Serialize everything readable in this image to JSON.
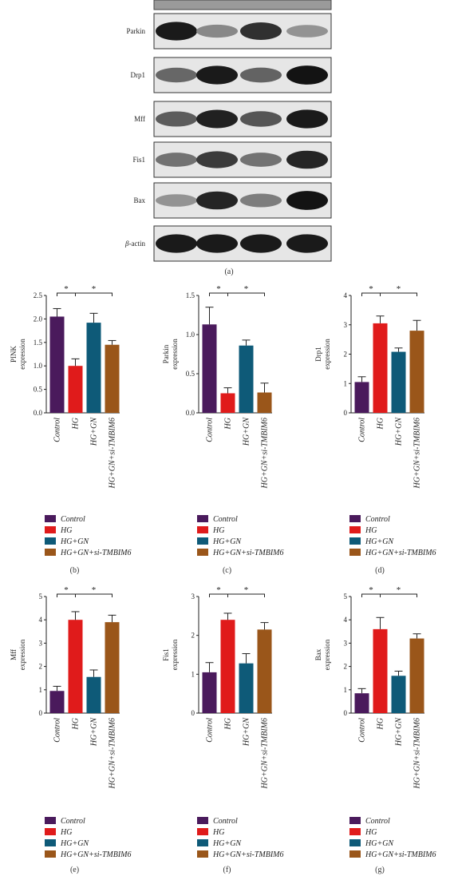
{
  "figure": {
    "blot_caption": "(a)",
    "blot_rows": [
      {
        "label": "Parkin",
        "label_italic_prefix": ""
      },
      {
        "label": "Drp1",
        "label_italic_prefix": ""
      },
      {
        "label": "Mff",
        "label_italic_prefix": ""
      },
      {
        "label": "Fis1",
        "label_italic_prefix": ""
      },
      {
        "label": "Bax",
        "label_italic_prefix": ""
      },
      {
        "label": "-actin",
        "label_italic_prefix": "β"
      }
    ],
    "blot_intensity": [
      [
        0.95,
        0.45,
        0.85,
        0.4
      ],
      [
        0.6,
        0.95,
        0.62,
        0.98
      ],
      [
        0.65,
        0.92,
        0.68,
        0.95
      ],
      [
        0.55,
        0.8,
        0.55,
        0.9
      ],
      [
        0.4,
        0.9,
        0.5,
        0.98
      ],
      [
        0.95,
        0.95,
        0.95,
        0.95
      ]
    ],
    "significance_mark": "*",
    "colors": {
      "Control": "#4a1a5c",
      "HG": "#e01b1b",
      "HG+GN": "#0e5a78",
      "HG+GN+si-TMBIM6": "#9a561a"
    }
  },
  "legend": [
    "Control",
    "HG",
    "HG+GN",
    "HG+GN+si-TMBIM6"
  ],
  "chart_data": [
    {
      "type": "bar",
      "panel": "(b)",
      "ylabel_lines": [
        "PINK",
        "expression"
      ],
      "categories": [
        "Control",
        "HG",
        "HG+GN",
        "HG+GN+si-TMBIM6"
      ],
      "values": [
        2.05,
        1.0,
        1.92,
        1.45
      ],
      "errors": [
        0.17,
        0.15,
        0.2,
        0.09
      ],
      "ylim": [
        0,
        2.5
      ],
      "yticks": [
        "0.0",
        "0.5",
        "1.0",
        "1.5",
        "2.0",
        "2.5"
      ],
      "ytick_values": [
        0,
        0.5,
        1.0,
        1.5,
        2.0,
        2.5
      ]
    },
    {
      "type": "bar",
      "panel": "(c)",
      "ylabel_lines": [
        "Parkin",
        "expression"
      ],
      "categories": [
        "Control",
        "HG",
        "HG+GN",
        "HG+GN+si-TMBIM6"
      ],
      "values": [
        1.13,
        0.25,
        0.86,
        0.26
      ],
      "errors": [
        0.22,
        0.07,
        0.07,
        0.12
      ],
      "ylim": [
        0,
        1.5
      ],
      "yticks": [
        "0.0",
        "0.5",
        "1.0",
        "1.5"
      ],
      "ytick_values": [
        0,
        0.5,
        1.0,
        1.5
      ]
    },
    {
      "type": "bar",
      "panel": "(d)",
      "ylabel_lines": [
        "Drp1",
        "expression"
      ],
      "categories": [
        "Control",
        "HG",
        "HG+GN",
        "HG+GN+si-TMBIM6"
      ],
      "values": [
        1.05,
        3.05,
        2.08,
        2.8
      ],
      "errors": [
        0.18,
        0.25,
        0.13,
        0.35
      ],
      "ylim": [
        0,
        4
      ],
      "yticks": [
        "0",
        "1",
        "2",
        "3",
        "4"
      ],
      "ytick_values": [
        0,
        1,
        2,
        3,
        4
      ]
    },
    {
      "type": "bar",
      "panel": "(e)",
      "ylabel_lines": [
        "Mff",
        "expression"
      ],
      "categories": [
        "Control",
        "HG",
        "HG+GN",
        "HG+GN+si-TMBIM6"
      ],
      "values": [
        0.95,
        4.0,
        1.55,
        3.9
      ],
      "errors": [
        0.2,
        0.35,
        0.3,
        0.3
      ],
      "ylim": [
        0,
        5
      ],
      "yticks": [
        "0",
        "1",
        "2",
        "3",
        "4",
        "5"
      ],
      "ytick_values": [
        0,
        1,
        2,
        3,
        4,
        5
      ]
    },
    {
      "type": "bar",
      "panel": "(f)",
      "ylabel_lines": [
        "Fis1",
        "expression"
      ],
      "categories": [
        "Control",
        "HG",
        "HG+GN",
        "HG+GN+si-TMBIM6"
      ],
      "values": [
        1.05,
        2.4,
        1.28,
        2.15
      ],
      "errors": [
        0.25,
        0.17,
        0.25,
        0.18
      ],
      "ylim": [
        0,
        3
      ],
      "yticks": [
        "0",
        "1",
        "2",
        "3"
      ],
      "ytick_values": [
        0,
        1,
        2,
        3
      ]
    },
    {
      "type": "bar",
      "panel": "(g)",
      "ylabel_lines": [
        "Bax",
        "expression"
      ],
      "categories": [
        "Control",
        "HG",
        "HG+GN",
        "HG+GN+si-TMBIM6"
      ],
      "values": [
        0.85,
        3.6,
        1.6,
        3.2
      ],
      "errors": [
        0.2,
        0.5,
        0.2,
        0.2
      ],
      "ylim": [
        0,
        5
      ],
      "yticks": [
        "0",
        "1",
        "2",
        "3",
        "4",
        "5"
      ],
      "ytick_values": [
        0,
        1,
        2,
        3,
        4,
        5
      ]
    }
  ]
}
